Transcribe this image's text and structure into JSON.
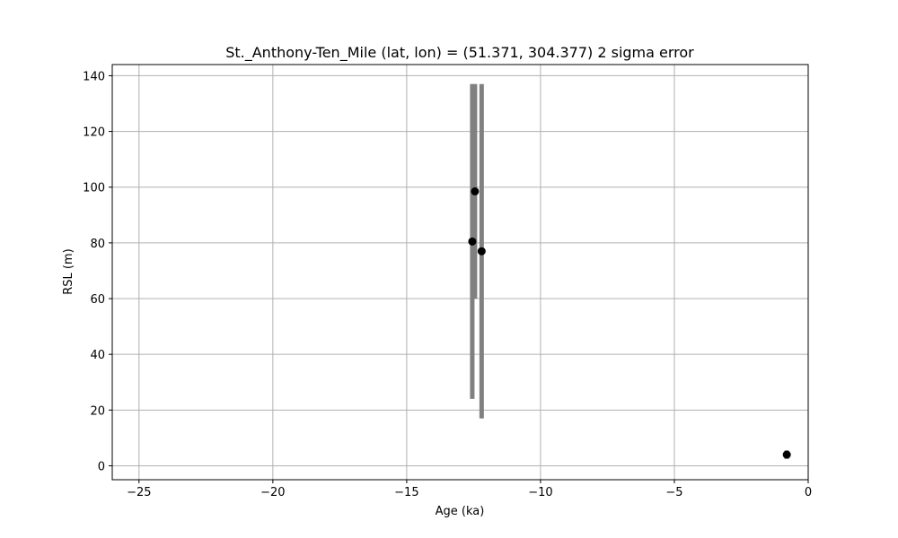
{
  "chart_data": {
    "type": "scatter",
    "title": "St._Anthony-Ten_Mile (lat, lon) = (51.371, 304.377)  2 sigma error",
    "xlabel": "Age (ka)",
    "ylabel": "RSL (m)",
    "xlim": [
      -26.0,
      0.0
    ],
    "ylim": [
      -5.0,
      144.0
    ],
    "x_ticks": [
      -25,
      -20,
      -15,
      -10,
      -5,
      0
    ],
    "x_tick_labels": [
      "−25",
      "−20",
      "−15",
      "−10",
      "−5",
      "0"
    ],
    "y_ticks": [
      0,
      20,
      40,
      60,
      80,
      100,
      120,
      140
    ],
    "y_tick_labels": [
      "0",
      "20",
      "40",
      "60",
      "80",
      "100",
      "120",
      "140"
    ],
    "grid": true,
    "marker_color": "#000000",
    "errorbar_color": "#808080",
    "points": [
      {
        "x": -12.55,
        "y": 80.5,
        "y_low": 24.0,
        "y_high": 137.0
      },
      {
        "x": -12.45,
        "y": 98.5,
        "y_low": 60.0,
        "y_high": 137.0
      },
      {
        "x": -12.2,
        "y": 77.0,
        "y_low": 17.0,
        "y_high": 137.0
      },
      {
        "x": -0.8,
        "y": 4.0,
        "y_low": 2.5,
        "y_high": 5.5
      }
    ]
  }
}
